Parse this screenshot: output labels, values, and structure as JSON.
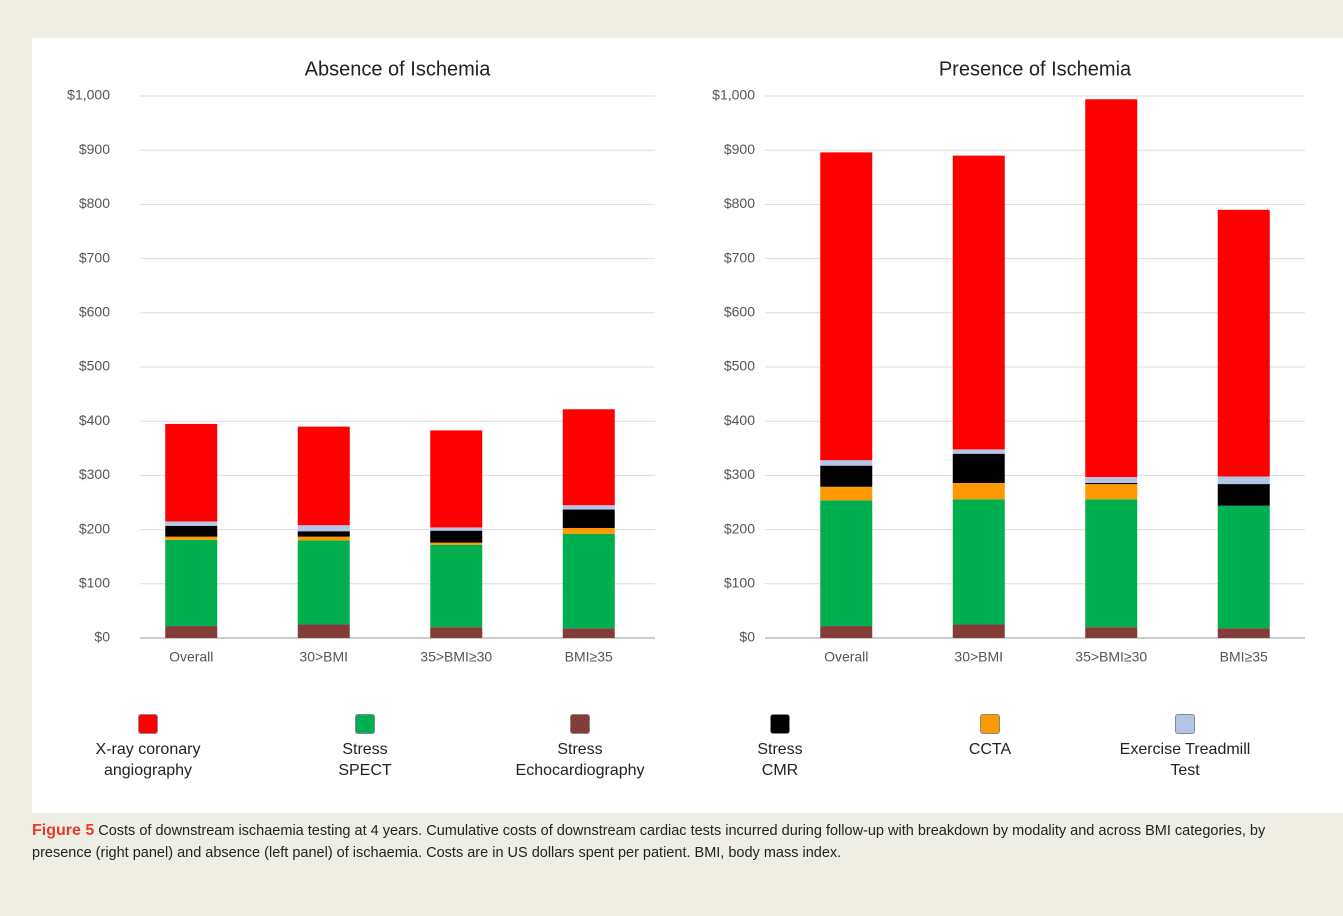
{
  "chart_data": {
    "type": "bar",
    "stacked": true,
    "categories": [
      "Overall",
      "30>BMI",
      "35>BMI≥30",
      "BMI≥35"
    ],
    "titles": [
      "Absence of Ischemia",
      "Presence of Ischemia"
    ],
    "ylim": [
      0,
      1000
    ],
    "yticks": [
      {
        "value": 0,
        "label": "$0"
      },
      {
        "value": 100,
        "label": "$100"
      },
      {
        "value": 200,
        "label": "$200"
      },
      {
        "value": 300,
        "label": "$300"
      },
      {
        "value": 400,
        "label": "$400"
      },
      {
        "value": 500,
        "label": "$500"
      },
      {
        "value": 600,
        "label": "$600"
      },
      {
        "value": 700,
        "label": "$700"
      },
      {
        "value": 800,
        "label": "$800"
      },
      {
        "value": 900,
        "label": "$900"
      },
      {
        "value": 1000,
        "label": "$1,000"
      }
    ],
    "grid": true,
    "stack_order": [
      2,
      1,
      4,
      3,
      5,
      0
    ],
    "series": [
      {
        "name": "X-ray coronary angiography",
        "color": "#ff0000",
        "values": [
          [
            180,
            182,
            179,
            177
          ],
          [
            568,
            542,
            697,
            492
          ]
        ]
      },
      {
        "name": "Stress SPECT",
        "color": "#00b050",
        "values": [
          [
            159,
            155,
            152,
            174
          ],
          [
            232,
            231,
            236,
            226
          ]
        ]
      },
      {
        "name": "Stress Echocardiography",
        "color": "#843c39",
        "values": [
          [
            22,
            25,
            20,
            18
          ],
          [
            22,
            25,
            20,
            18
          ]
        ]
      },
      {
        "name": "Stress CMR",
        "color": "#000000",
        "values": [
          [
            20,
            10,
            22,
            34
          ],
          [
            39,
            54,
            2,
            40
          ]
        ]
      },
      {
        "name": "CCTA",
        "color": "#ff9900",
        "values": [
          [
            6,
            7,
            4,
            11
          ],
          [
            25,
            30,
            28,
            0
          ]
        ]
      },
      {
        "name": "Exercise Treadmill Test",
        "color": "#b4c6e7",
        "values": [
          [
            8,
            11,
            6,
            8
          ],
          [
            10,
            8,
            11,
            14
          ]
        ]
      }
    ]
  },
  "caption": {
    "label": "Figure 5",
    "text": "Costs of downstream ischaemia testing at 4 years. Cumulative costs of downstream cardiac tests incurred during follow-up with breakdown by modality and across BMI categories, by presence (right panel) and absence (left panel) of ischaemia. Costs are in US dollars spent per patient. BMI, body mass index."
  }
}
